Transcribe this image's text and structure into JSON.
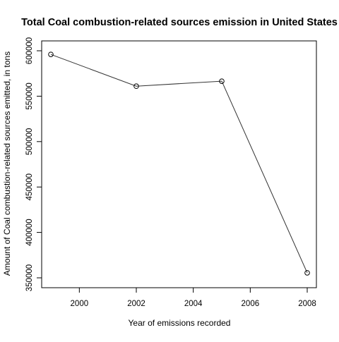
{
  "chart_data": {
    "type": "line",
    "title": "Total Coal combustion-related sources emission in United States",
    "xlabel": "Year of emissions recorded",
    "ylabel": "Amount of Coal combustion-related sources emitted, in tons",
    "x": [
      1999,
      2002,
      2005,
      2008
    ],
    "series": [
      {
        "values": [
          596000,
          561000,
          566500,
          355500
        ]
      }
    ],
    "xlim": [
      1999,
      2008
    ],
    "ylim": [
      350000,
      600000
    ],
    "xticks": [
      2000,
      2002,
      2004,
      2006,
      2008
    ],
    "yticks": [
      350000,
      400000,
      450000,
      500000,
      550000,
      600000
    ],
    "xtick_labels": [
      "2000",
      "2002",
      "2004",
      "2006",
      "2008"
    ],
    "ytick_labels": [
      "350000",
      "400000",
      "450000",
      "500000",
      "550000",
      "600000"
    ],
    "markers": "open-circle",
    "grid": false,
    "line_color": "#333333"
  }
}
